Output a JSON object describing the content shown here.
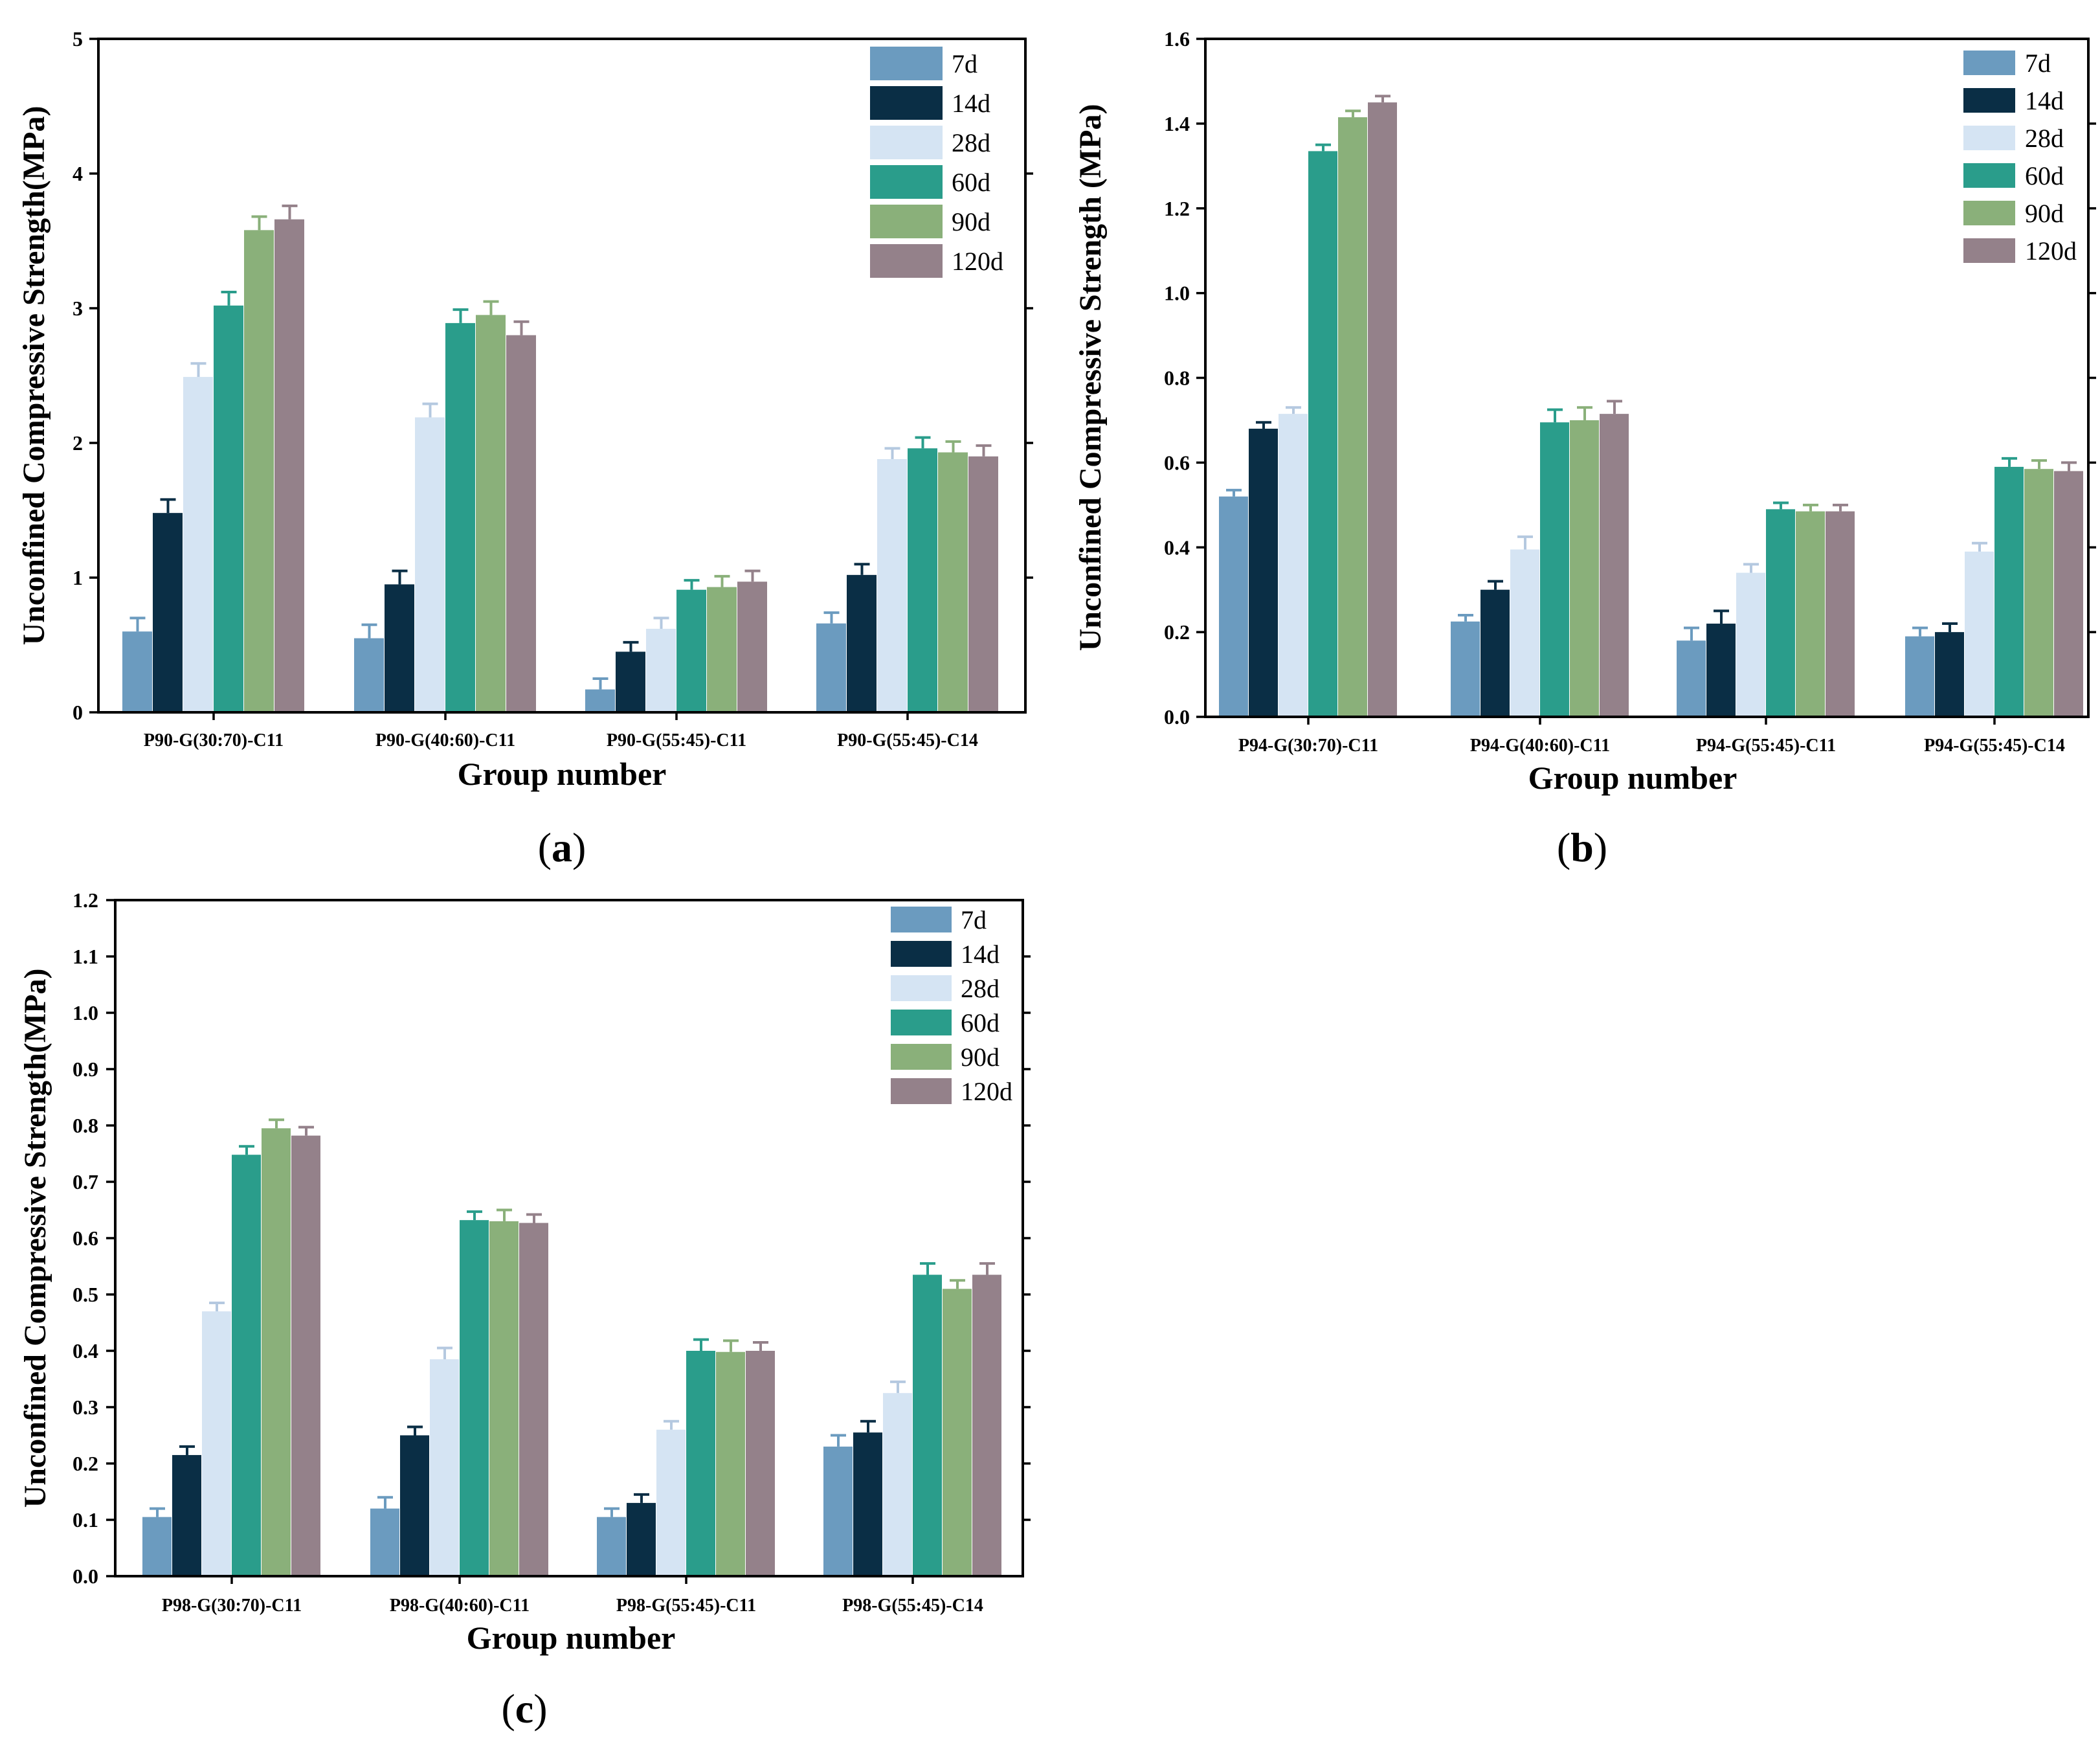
{
  "chart_data": [
    {
      "type": "bar",
      "panel": "a",
      "xlabel": "Group number",
      "ylabel": "Unconfined Compressive Strength(MPa)",
      "ylim": [
        0,
        5
      ],
      "yticks": [
        0,
        1,
        2,
        3,
        4,
        5
      ],
      "ytick_labels": [
        "0",
        "1",
        "2",
        "3",
        "4",
        "5"
      ],
      "legend_position": "top-right",
      "categories": [
        "P90-G(30:70)-C11",
        "P90-G(40:60)-C11",
        "P90-G(55:45)-C11",
        "P90-G(55:45)-C14"
      ],
      "series": [
        {
          "name": "7d",
          "color": "#6b9bbf",
          "values": [
            0.6,
            0.55,
            0.17,
            0.66
          ],
          "errors": [
            0.1,
            0.1,
            0.08,
            0.08
          ]
        },
        {
          "name": "14d",
          "color": "#0a2e45",
          "values": [
            1.48,
            0.95,
            0.45,
            1.02
          ],
          "errors": [
            0.1,
            0.1,
            0.07,
            0.08
          ]
        },
        {
          "name": "28d",
          "color": "#d5e4f3",
          "values": [
            2.49,
            2.19,
            0.62,
            1.88
          ],
          "errors": [
            0.1,
            0.1,
            0.08,
            0.08
          ]
        },
        {
          "name": "60d",
          "color": "#2a9d8b",
          "values": [
            3.02,
            2.89,
            0.91,
            1.96
          ],
          "errors": [
            0.1,
            0.1,
            0.07,
            0.08
          ]
        },
        {
          "name": "90d",
          "color": "#8ab07a",
          "values": [
            3.58,
            2.95,
            0.93,
            1.93
          ],
          "errors": [
            0.1,
            0.1,
            0.08,
            0.08
          ]
        },
        {
          "name": "120d",
          "color": "#94818a",
          "values": [
            3.66,
            2.8,
            0.97,
            1.9
          ],
          "errors": [
            0.1,
            0.1,
            0.08,
            0.08
          ]
        }
      ]
    },
    {
      "type": "bar",
      "panel": "b",
      "xlabel": "Group number",
      "ylabel": "Unconfined Compressive Strength (MPa)",
      "ylim": [
        0,
        1.6
      ],
      "yticks": [
        0,
        0.2,
        0.4,
        0.6,
        0.8,
        1.0,
        1.2,
        1.4,
        1.6
      ],
      "ytick_labels": [
        "0.0",
        "0.2",
        "0.4",
        "0.6",
        "0.8",
        "1.0",
        "1.2",
        "1.4",
        "1.6"
      ],
      "legend_position": "top-right",
      "categories": [
        "P94-G(30:70)-C11",
        "P94-G(40:60)-C11",
        "P94-G(55:45)-C11",
        "P94-G(55:45)-C14"
      ],
      "series": [
        {
          "name": "7d",
          "color": "#6b9bbf",
          "values": [
            0.52,
            0.225,
            0.18,
            0.19
          ],
          "errors": [
            0.015,
            0.015,
            0.03,
            0.02
          ]
        },
        {
          "name": "14d",
          "color": "#0a2e45",
          "values": [
            0.68,
            0.3,
            0.22,
            0.2
          ],
          "errors": [
            0.015,
            0.02,
            0.03,
            0.02
          ]
        },
        {
          "name": "28d",
          "color": "#d5e4f3",
          "values": [
            0.715,
            0.395,
            0.34,
            0.39
          ],
          "errors": [
            0.015,
            0.03,
            0.02,
            0.02
          ]
        },
        {
          "name": "60d",
          "color": "#2a9d8b",
          "values": [
            1.335,
            0.695,
            0.49,
            0.59
          ],
          "errors": [
            0.015,
            0.03,
            0.015,
            0.02
          ]
        },
        {
          "name": "90d",
          "color": "#8ab07a",
          "values": [
            1.415,
            0.7,
            0.485,
            0.585
          ],
          "errors": [
            0.015,
            0.03,
            0.015,
            0.02
          ]
        },
        {
          "name": "120d",
          "color": "#94818a",
          "values": [
            1.45,
            0.715,
            0.485,
            0.58
          ],
          "errors": [
            0.015,
            0.03,
            0.015,
            0.02
          ]
        }
      ]
    },
    {
      "type": "bar",
      "panel": "c",
      "xlabel": "Group number",
      "ylabel": "Unconfined Compressive Strength(MPa)",
      "ylim": [
        0,
        1.2
      ],
      "yticks": [
        0,
        0.1,
        0.2,
        0.3,
        0.4,
        0.5,
        0.6,
        0.7,
        0.8,
        0.9,
        1.0,
        1.1,
        1.2
      ],
      "ytick_labels": [
        "0.0",
        "0.1",
        "0.2",
        "0.3",
        "0.4",
        "0.5",
        "0.6",
        "0.7",
        "0.8",
        "0.9",
        "1.0",
        "1.1",
        "1.2"
      ],
      "legend_position": "top-right",
      "categories": [
        "P98-G(30:70)-C11",
        "P98-G(40:60)-C11",
        "P98-G(55:45)-C11",
        "P98-G(55:45)-C14"
      ],
      "series": [
        {
          "name": "7d",
          "color": "#6b9bbf",
          "values": [
            0.105,
            0.12,
            0.105,
            0.23
          ],
          "errors": [
            0.015,
            0.02,
            0.015,
            0.02
          ]
        },
        {
          "name": "14d",
          "color": "#0a2e45",
          "values": [
            0.215,
            0.25,
            0.13,
            0.255
          ],
          "errors": [
            0.015,
            0.015,
            0.015,
            0.02
          ]
        },
        {
          "name": "28d",
          "color": "#d5e4f3",
          "values": [
            0.47,
            0.385,
            0.26,
            0.325
          ],
          "errors": [
            0.015,
            0.02,
            0.015,
            0.02
          ]
        },
        {
          "name": "60d",
          "color": "#2a9d8b",
          "values": [
            0.748,
            0.632,
            0.4,
            0.535
          ],
          "errors": [
            0.015,
            0.015,
            0.02,
            0.02
          ]
        },
        {
          "name": "90d",
          "color": "#8ab07a",
          "values": [
            0.795,
            0.63,
            0.398,
            0.51
          ],
          "errors": [
            0.015,
            0.02,
            0.02,
            0.015
          ]
        },
        {
          "name": "120d",
          "color": "#94818a",
          "values": [
            0.782,
            0.627,
            0.4,
            0.535
          ],
          "errors": [
            0.015,
            0.015,
            0.015,
            0.02
          ]
        }
      ]
    }
  ]
}
